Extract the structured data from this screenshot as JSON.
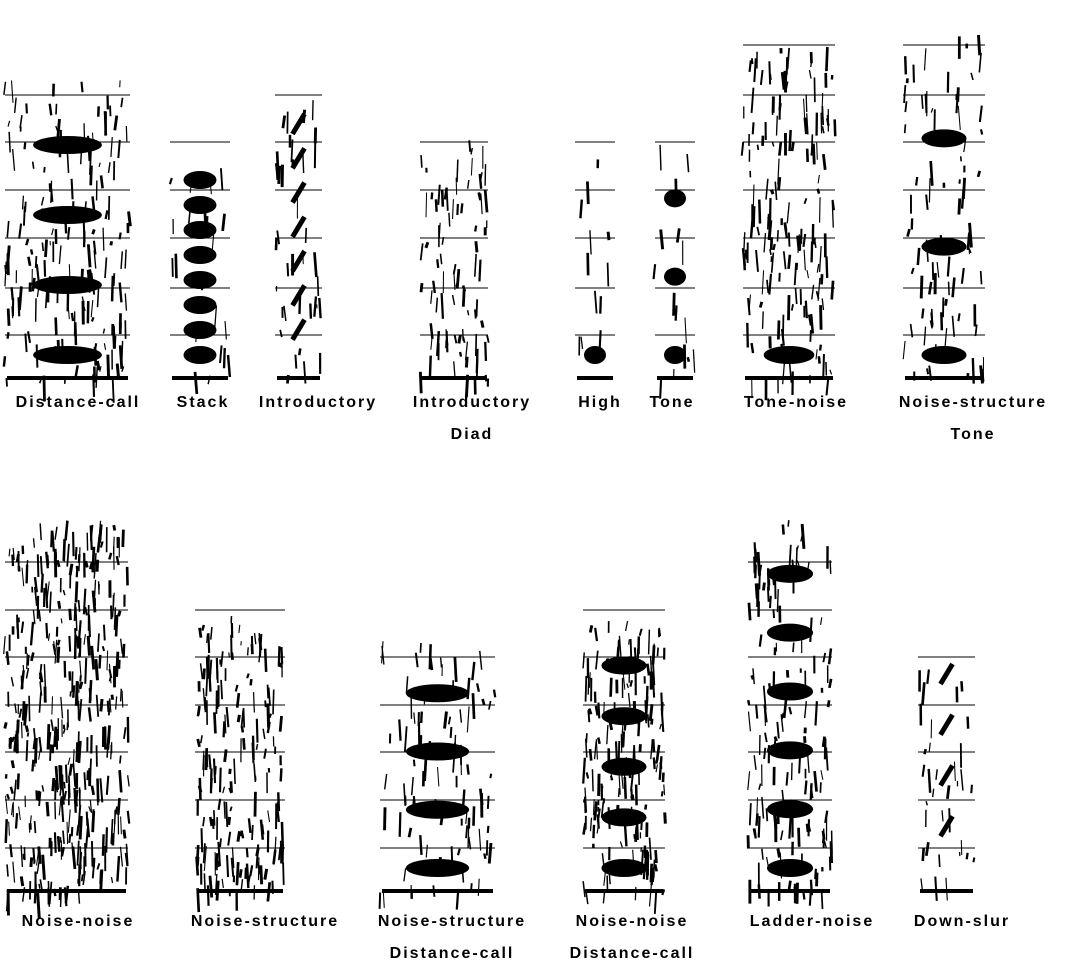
{
  "rows": [
    {
      "panels": [
        {
          "label": [
            "Distance-call"
          ]
        },
        {
          "label": [
            "Stack"
          ]
        },
        {
          "label": [
            "Introductory"
          ]
        },
        {
          "label": [
            "Introductory",
            "Diad"
          ]
        },
        {
          "label": [
            "High"
          ]
        },
        {
          "label": [
            "Tone"
          ]
        },
        {
          "label": [
            "Tone-noise"
          ]
        },
        {
          "label": [
            "Noise-structure",
            "Tone"
          ]
        }
      ]
    },
    {
      "panels": [
        {
          "label": [
            "Noise-noise"
          ]
        },
        {
          "label": [
            "Noise-structure"
          ]
        },
        {
          "label": [
            "Noise-structure",
            "Distance-call"
          ]
        },
        {
          "label": [
            "Noise-noise",
            "Distance-call"
          ]
        },
        {
          "label": [
            "Ladder-noise"
          ]
        },
        {
          "label": [
            "Down-slur"
          ]
        }
      ]
    }
  ]
}
